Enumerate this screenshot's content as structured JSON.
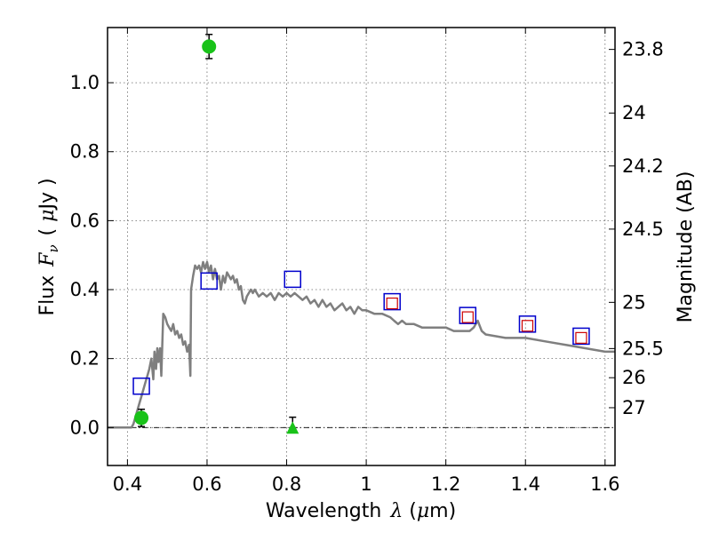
{
  "chart_data": {
    "type": "scatter",
    "xlabel": {
      "prefix": "Wavelength",
      "symbol": "λ",
      "unit_open": " (",
      "unit_mu": "μ",
      "unit_rest": "m)"
    },
    "ylabel": {
      "prefix": "Flux",
      "symbol": "F",
      "subscript": "ν",
      "unit_open": "( ",
      "unit_mu": "μ",
      "unit_rest": "Jy )"
    },
    "y2label": "Magnitude (AB)",
    "xlim": [
      0.35,
      1.625
    ],
    "ylim": [
      -0.11,
      1.16
    ],
    "grid": true,
    "x_ticks": [
      {
        "value": 0.4,
        "label": "0.4"
      },
      {
        "value": 0.6,
        "label": "0.6"
      },
      {
        "value": 0.8,
        "label": "0.8"
      },
      {
        "value": 1.0,
        "label": "1"
      },
      {
        "value": 1.2,
        "label": "1.2"
      },
      {
        "value": 1.4,
        "label": "1.4"
      },
      {
        "value": 1.6,
        "label": "1.6"
      }
    ],
    "y_ticks": [
      {
        "value": 0.0,
        "label": "0.0"
      },
      {
        "value": 0.2,
        "label": "0.2"
      },
      {
        "value": 0.4,
        "label": "0.4"
      },
      {
        "value": 0.6,
        "label": "0.6"
      },
      {
        "value": 0.8,
        "label": "0.8"
      },
      {
        "value": 1.0,
        "label": "1.0"
      }
    ],
    "y2_ticks": [
      {
        "value": 23.8,
        "label": "23.8"
      },
      {
        "value": 24.0,
        "label": "24"
      },
      {
        "value": 24.2,
        "label": "24.2"
      },
      {
        "value": 24.5,
        "label": "24.5"
      },
      {
        "value": 25.0,
        "label": "25"
      },
      {
        "value": 25.5,
        "label": "25.5"
      },
      {
        "value": 26.0,
        "label": "26"
      },
      {
        "value": 27.0,
        "label": "27"
      }
    ],
    "colors": {
      "sed": "#7f7f7f",
      "model_blue": "#0000cc",
      "model_red": "#cc0000",
      "detection": "#19c219",
      "errorbar": "#000000"
    },
    "series": [
      {
        "type": "line",
        "points": [
          [
            0.35,
            0.0
          ],
          [
            0.41,
            0.0
          ],
          [
            0.415,
            0.01
          ],
          [
            0.42,
            0.03
          ],
          [
            0.425,
            0.05
          ],
          [
            0.43,
            0.07
          ],
          [
            0.435,
            0.09
          ],
          [
            0.44,
            0.11
          ],
          [
            0.445,
            0.13
          ],
          [
            0.45,
            0.15
          ],
          [
            0.455,
            0.17
          ],
          [
            0.46,
            0.2
          ],
          [
            0.465,
            0.14
          ],
          [
            0.468,
            0.22
          ],
          [
            0.472,
            0.17
          ],
          [
            0.475,
            0.23
          ],
          [
            0.478,
            0.19
          ],
          [
            0.482,
            0.23
          ],
          [
            0.485,
            0.15
          ],
          [
            0.49,
            0.33
          ],
          [
            0.495,
            0.32
          ],
          [
            0.5,
            0.3
          ],
          [
            0.505,
            0.29
          ],
          [
            0.51,
            0.28
          ],
          [
            0.515,
            0.3
          ],
          [
            0.52,
            0.27
          ],
          [
            0.525,
            0.28
          ],
          [
            0.53,
            0.26
          ],
          [
            0.535,
            0.27
          ],
          [
            0.54,
            0.24
          ],
          [
            0.545,
            0.25
          ],
          [
            0.55,
            0.22
          ],
          [
            0.555,
            0.24
          ],
          [
            0.558,
            0.15
          ],
          [
            0.56,
            0.4
          ],
          [
            0.565,
            0.44
          ],
          [
            0.57,
            0.47
          ],
          [
            0.575,
            0.46
          ],
          [
            0.58,
            0.47
          ],
          [
            0.585,
            0.45
          ],
          [
            0.59,
            0.48
          ],
          [
            0.595,
            0.46
          ],
          [
            0.6,
            0.48
          ],
          [
            0.605,
            0.45
          ],
          [
            0.61,
            0.47
          ],
          [
            0.615,
            0.43
          ],
          [
            0.62,
            0.46
          ],
          [
            0.625,
            0.43
          ],
          [
            0.63,
            0.44
          ],
          [
            0.635,
            0.4
          ],
          [
            0.64,
            0.44
          ],
          [
            0.645,
            0.42
          ],
          [
            0.65,
            0.45
          ],
          [
            0.655,
            0.44
          ],
          [
            0.66,
            0.43
          ],
          [
            0.665,
            0.44
          ],
          [
            0.67,
            0.42
          ],
          [
            0.675,
            0.43
          ],
          [
            0.68,
            0.4
          ],
          [
            0.685,
            0.41
          ],
          [
            0.69,
            0.37
          ],
          [
            0.695,
            0.36
          ],
          [
            0.7,
            0.38
          ],
          [
            0.705,
            0.39
          ],
          [
            0.71,
            0.4
          ],
          [
            0.715,
            0.39
          ],
          [
            0.72,
            0.4
          ],
          [
            0.73,
            0.38
          ],
          [
            0.74,
            0.39
          ],
          [
            0.75,
            0.38
          ],
          [
            0.76,
            0.39
          ],
          [
            0.77,
            0.37
          ],
          [
            0.78,
            0.39
          ],
          [
            0.79,
            0.38
          ],
          [
            0.8,
            0.39
          ],
          [
            0.81,
            0.38
          ],
          [
            0.82,
            0.39
          ],
          [
            0.83,
            0.38
          ],
          [
            0.84,
            0.37
          ],
          [
            0.85,
            0.38
          ],
          [
            0.86,
            0.36
          ],
          [
            0.87,
            0.37
          ],
          [
            0.88,
            0.35
          ],
          [
            0.89,
            0.37
          ],
          [
            0.9,
            0.35
          ],
          [
            0.91,
            0.36
          ],
          [
            0.92,
            0.34
          ],
          [
            0.93,
            0.35
          ],
          [
            0.94,
            0.36
          ],
          [
            0.95,
            0.34
          ],
          [
            0.96,
            0.35
          ],
          [
            0.97,
            0.33
          ],
          [
            0.98,
            0.35
          ],
          [
            0.99,
            0.34
          ],
          [
            1.0,
            0.34
          ],
          [
            1.02,
            0.33
          ],
          [
            1.04,
            0.33
          ],
          [
            1.06,
            0.32
          ],
          [
            1.07,
            0.31
          ],
          [
            1.08,
            0.3
          ],
          [
            1.09,
            0.31
          ],
          [
            1.1,
            0.3
          ],
          [
            1.12,
            0.3
          ],
          [
            1.14,
            0.29
          ],
          [
            1.16,
            0.29
          ],
          [
            1.18,
            0.29
          ],
          [
            1.2,
            0.29
          ],
          [
            1.22,
            0.28
          ],
          [
            1.24,
            0.28
          ],
          [
            1.26,
            0.28
          ],
          [
            1.27,
            0.29
          ],
          [
            1.28,
            0.31
          ],
          [
            1.29,
            0.28
          ],
          [
            1.3,
            0.27
          ],
          [
            1.35,
            0.26
          ],
          [
            1.4,
            0.26
          ],
          [
            1.45,
            0.25
          ],
          [
            1.5,
            0.24
          ],
          [
            1.55,
            0.23
          ],
          [
            1.6,
            0.22
          ],
          [
            1.625,
            0.22
          ]
        ]
      },
      {
        "type": "open-square-blue",
        "points": [
          [
            0.435,
            0.12
          ],
          [
            0.605,
            0.425
          ],
          [
            0.815,
            0.43
          ],
          [
            1.065,
            0.365
          ],
          [
            1.255,
            0.325
          ],
          [
            1.405,
            0.3
          ],
          [
            1.54,
            0.265
          ]
        ]
      },
      {
        "type": "open-square-red",
        "points": [
          [
            1.065,
            0.36
          ],
          [
            1.255,
            0.32
          ],
          [
            1.405,
            0.295
          ],
          [
            1.54,
            0.26
          ]
        ]
      },
      {
        "type": "detection",
        "points": [
          [
            0.435,
            0.028,
            0.025
          ],
          [
            0.605,
            1.105,
            0.035
          ]
        ]
      },
      {
        "type": "upper-limit",
        "points": [
          [
            0.815,
            0.0,
            0.03
          ]
        ]
      }
    ]
  }
}
